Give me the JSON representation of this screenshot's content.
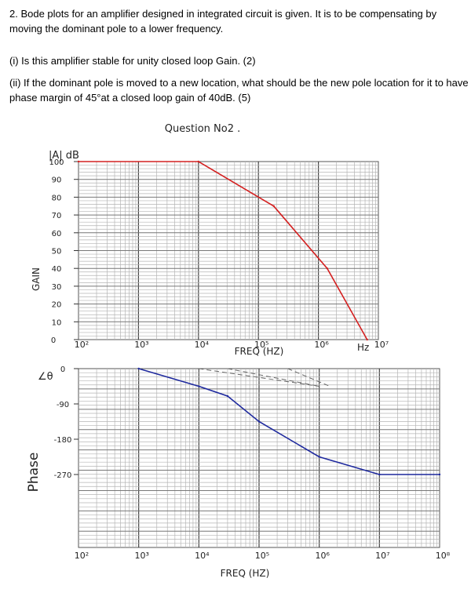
{
  "question": {
    "intro": "2. Bode plots for an amplifier designed in integrated circuit is given. It is to be compensating by moving the dominant pole to a lower frequency.",
    "part1": "(i) Is this amplifier stable for unity closed loop Gain. (2)",
    "part2": "(ii) If the dominant pole is moved to a new location, what should be the new pole location for it to have phase margin of 45°at a closed loop gain of 40dB. (5)"
  },
  "figure": {
    "heading": "Question No2 .",
    "gain_axis_title": "|A| dB",
    "gain_side_label": "GAIN",
    "phase_axis_title": "∠θ",
    "phase_side_label": "Phase",
    "gain_ticks": [
      "100",
      "90",
      "80",
      "70",
      "60",
      "50",
      "40",
      "30",
      "20",
      "10",
      "0"
    ],
    "phase_ticks": [
      "0",
      "-90",
      "-180",
      "-270"
    ],
    "gain_freq_ticks": [
      "10²",
      "10³",
      "10⁴",
      "10⁵",
      "10⁶",
      "10⁷"
    ],
    "gain_freq_unit": "Hz",
    "gain_freq_label": "FREQ (HZ)",
    "phase_freq_ticks": [
      "10²",
      "10³",
      "10⁴",
      "10⁵",
      "10⁶",
      "10⁷",
      "10⁸"
    ],
    "phase_freq_label": "FREQ (HZ)"
  },
  "chart_data": [
    {
      "type": "line",
      "xscale": "log",
      "xlim": [
        100,
        10000000
      ],
      "ylim": [
        0,
        100
      ],
      "ylabel": "|A| dB",
      "series": [
        {
          "color": "#d42020",
          "x": [
            100,
            10000,
            180000,
            1400000,
            6500000
          ],
          "y": [
            100,
            100,
            75,
            40,
            0
          ]
        }
      ]
    },
    {
      "type": "line",
      "xscale": "log",
      "xlim": [
        100,
        100000000
      ],
      "ylim": [
        -270,
        0
      ],
      "ylabel": "∠θ",
      "series": [
        {
          "color": "#1f2a9e",
          "x": [
            1000,
            10000,
            30000,
            100000,
            1000000,
            10000000,
            100000000
          ],
          "y": [
            0,
            -45,
            -70,
            -135,
            -225,
            -270,
            -270
          ]
        }
      ],
      "guides": [
        {
          "style": "dashed",
          "x": [
            10000,
            1000000
          ],
          "y": [
            0,
            -45
          ]
        },
        {
          "style": "dashed",
          "x": [
            30000,
            1000000
          ],
          "y": [
            0,
            -45
          ]
        },
        {
          "style": "dashed",
          "x": [
            300000,
            1500000
          ],
          "y": [
            0,
            -45
          ]
        }
      ]
    }
  ]
}
